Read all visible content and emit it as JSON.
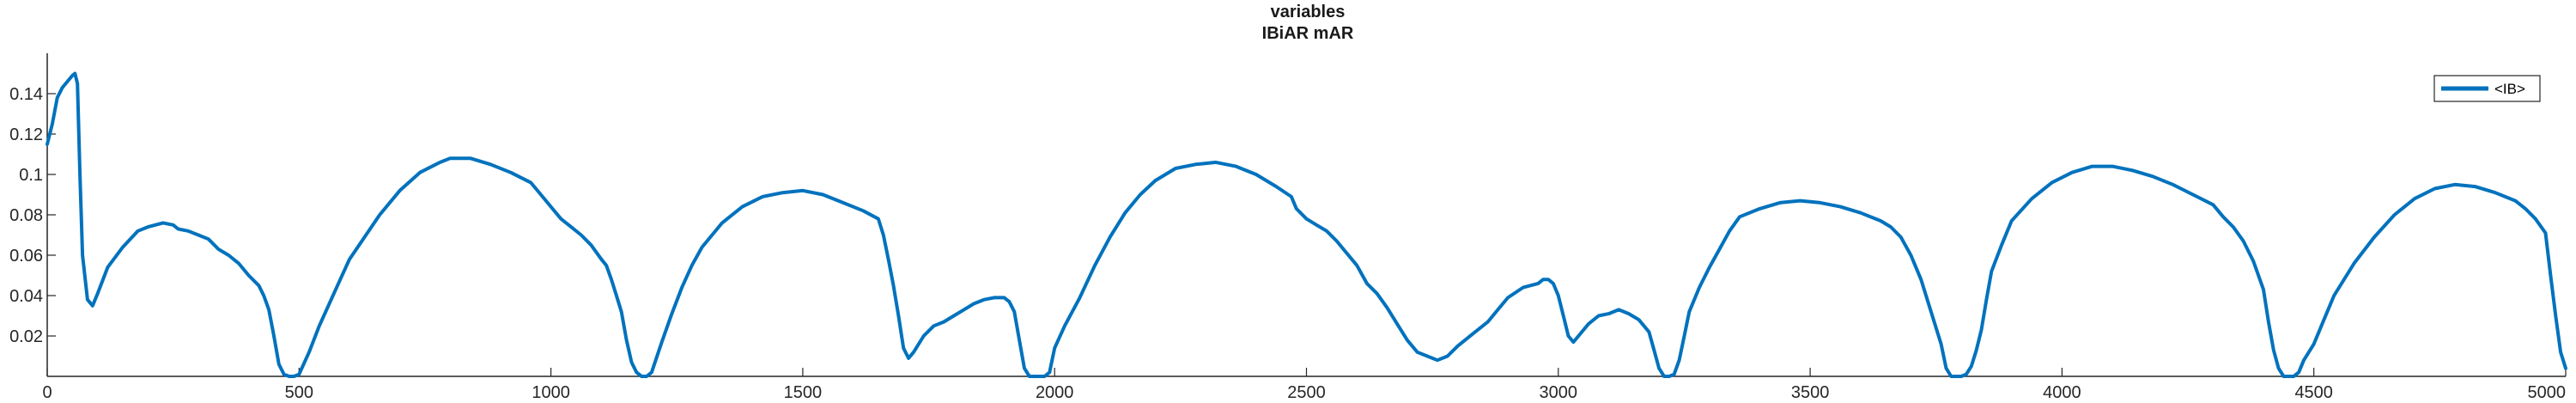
{
  "chart_data": {
    "type": "line",
    "title": "variables",
    "subtitle": "IBiAR mAR",
    "xlabel": "",
    "ylabel": "",
    "xlim": [
      0,
      5000
    ],
    "ylim": [
      0,
      0.16
    ],
    "xticks": [
      0,
      500,
      1000,
      1500,
      2000,
      2500,
      3000,
      3500,
      4000,
      4500,
      5000
    ],
    "xtick_labels": [
      "0",
      "500",
      "1000",
      "1500",
      "2000",
      "2500",
      "3000",
      "3500",
      "4000",
      "4500",
      "5000"
    ],
    "yticks": [
      0.02,
      0.04,
      0.06,
      0.08,
      0.1,
      0.12,
      0.14
    ],
    "ytick_labels": [
      "0.02",
      "0.04",
      "0.06",
      "0.08",
      "0.1",
      "0.12",
      "0.14"
    ],
    "grid": false,
    "legend_position": "top-right",
    "colors": {
      "line": "#0072bd",
      "axis": "#262626"
    },
    "series": [
      {
        "name": "<IB>",
        "x": [
          0,
          10,
          20,
          30,
          40,
          50,
          55,
          60,
          65,
          70,
          80,
          90,
          100,
          120,
          150,
          180,
          200,
          230,
          250,
          260,
          280,
          300,
          320,
          340,
          360,
          380,
          400,
          420,
          430,
          440,
          450,
          460,
          470,
          480,
          490,
          500,
          520,
          540,
          560,
          580,
          600,
          630,
          660,
          700,
          740,
          780,
          800,
          840,
          880,
          920,
          960,
          980,
          1000,
          1020,
          1040,
          1060,
          1080,
          1100,
          1110,
          1120,
          1130,
          1140,
          1150,
          1160,
          1170,
          1180,
          1190,
          1200,
          1220,
          1240,
          1260,
          1280,
          1300,
          1340,
          1380,
          1420,
          1460,
          1500,
          1540,
          1580,
          1620,
          1650,
          1660,
          1670,
          1680,
          1690,
          1700,
          1710,
          1720,
          1740,
          1760,
          1780,
          1800,
          1820,
          1840,
          1860,
          1880,
          1900,
          1910,
          1920,
          1930,
          1940,
          1950,
          1960,
          1970,
          1980,
          1990,
          2000,
          2020,
          2050,
          2080,
          2110,
          2140,
          2170,
          2200,
          2240,
          2280,
          2320,
          2360,
          2400,
          2440,
          2470,
          2480,
          2500,
          2520,
          2540,
          2560,
          2580,
          2600,
          2620,
          2640,
          2660,
          2680,
          2700,
          2720,
          2740,
          2760,
          2780,
          2800,
          2830,
          2860,
          2880,
          2900,
          2930,
          2960,
          2970,
          2980,
          2990,
          3000,
          3010,
          3020,
          3030,
          3040,
          3060,
          3080,
          3100,
          3120,
          3140,
          3160,
          3180,
          3190,
          3200,
          3210,
          3220,
          3230,
          3240,
          3250,
          3260,
          3280,
          3300,
          3320,
          3340,
          3360,
          3400,
          3440,
          3480,
          3520,
          3560,
          3600,
          3640,
          3660,
          3680,
          3700,
          3720,
          3740,
          3760,
          3770,
          3780,
          3790,
          3800,
          3810,
          3820,
          3830,
          3840,
          3850,
          3860,
          3880,
          3900,
          3940,
          3980,
          4020,
          4060,
          4100,
          4140,
          4180,
          4220,
          4260,
          4300,
          4320,
          4340,
          4360,
          4380,
          4400,
          4410,
          4420,
          4430,
          4440,
          4450,
          4460,
          4470,
          4480,
          4500,
          4520,
          4540,
          4580,
          4620,
          4660,
          4700,
          4740,
          4780,
          4820,
          4860,
          4900,
          4920,
          4940,
          4960,
          4970,
          4980,
          4990,
          5000
        ],
        "y": [
          0.115,
          0.125,
          0.138,
          0.143,
          0.146,
          0.149,
          0.15,
          0.145,
          0.1,
          0.06,
          0.038,
          0.035,
          0.041,
          0.054,
          0.064,
          0.072,
          0.074,
          0.076,
          0.075,
          0.073,
          0.072,
          0.07,
          0.068,
          0.063,
          0.06,
          0.056,
          0.05,
          0.045,
          0.04,
          0.033,
          0.02,
          0.006,
          0.001,
          0.0,
          0.0,
          0.001,
          0.012,
          0.025,
          0.036,
          0.047,
          0.058,
          0.069,
          0.08,
          0.092,
          0.101,
          0.106,
          0.108,
          0.108,
          0.105,
          0.101,
          0.096,
          0.09,
          0.084,
          0.078,
          0.074,
          0.07,
          0.065,
          0.058,
          0.055,
          0.048,
          0.04,
          0.032,
          0.018,
          0.007,
          0.002,
          0.0,
          0.0,
          0.002,
          0.017,
          0.031,
          0.044,
          0.055,
          0.064,
          0.076,
          0.084,
          0.089,
          0.091,
          0.092,
          0.09,
          0.086,
          0.082,
          0.078,
          0.07,
          0.058,
          0.045,
          0.03,
          0.014,
          0.009,
          0.012,
          0.02,
          0.025,
          0.027,
          0.03,
          0.033,
          0.036,
          0.038,
          0.039,
          0.039,
          0.037,
          0.032,
          0.018,
          0.004,
          0.0,
          0.0,
          0.0,
          0.0,
          0.002,
          0.014,
          0.025,
          0.039,
          0.055,
          0.069,
          0.081,
          0.09,
          0.097,
          0.103,
          0.105,
          0.106,
          0.104,
          0.1,
          0.094,
          0.089,
          0.083,
          0.078,
          0.075,
          0.072,
          0.067,
          0.061,
          0.055,
          0.046,
          0.041,
          0.034,
          0.026,
          0.018,
          0.012,
          0.01,
          0.008,
          0.01,
          0.015,
          0.021,
          0.027,
          0.033,
          0.039,
          0.044,
          0.046,
          0.048,
          0.048,
          0.046,
          0.04,
          0.03,
          0.02,
          0.017,
          0.02,
          0.026,
          0.03,
          0.031,
          0.033,
          0.031,
          0.028,
          0.022,
          0.013,
          0.004,
          0.0,
          0.0,
          0.001,
          0.008,
          0.02,
          0.032,
          0.044,
          0.054,
          0.063,
          0.072,
          0.079,
          0.083,
          0.086,
          0.087,
          0.086,
          0.084,
          0.081,
          0.077,
          0.074,
          0.069,
          0.06,
          0.048,
          0.032,
          0.016,
          0.004,
          0.0,
          0.0,
          0.0,
          0.001,
          0.005,
          0.013,
          0.023,
          0.038,
          0.052,
          0.065,
          0.077,
          0.088,
          0.096,
          0.101,
          0.104,
          0.104,
          0.102,
          0.099,
          0.095,
          0.09,
          0.085,
          0.079,
          0.074,
          0.067,
          0.057,
          0.043,
          0.027,
          0.013,
          0.004,
          0.0,
          0.0,
          0.0,
          0.002,
          0.008,
          0.016,
          0.028,
          0.04,
          0.056,
          0.069,
          0.08,
          0.088,
          0.093,
          0.095,
          0.094,
          0.091,
          0.087,
          0.083,
          0.078,
          0.071,
          0.05,
          0.03,
          0.012,
          0.004
        ]
      }
    ]
  }
}
